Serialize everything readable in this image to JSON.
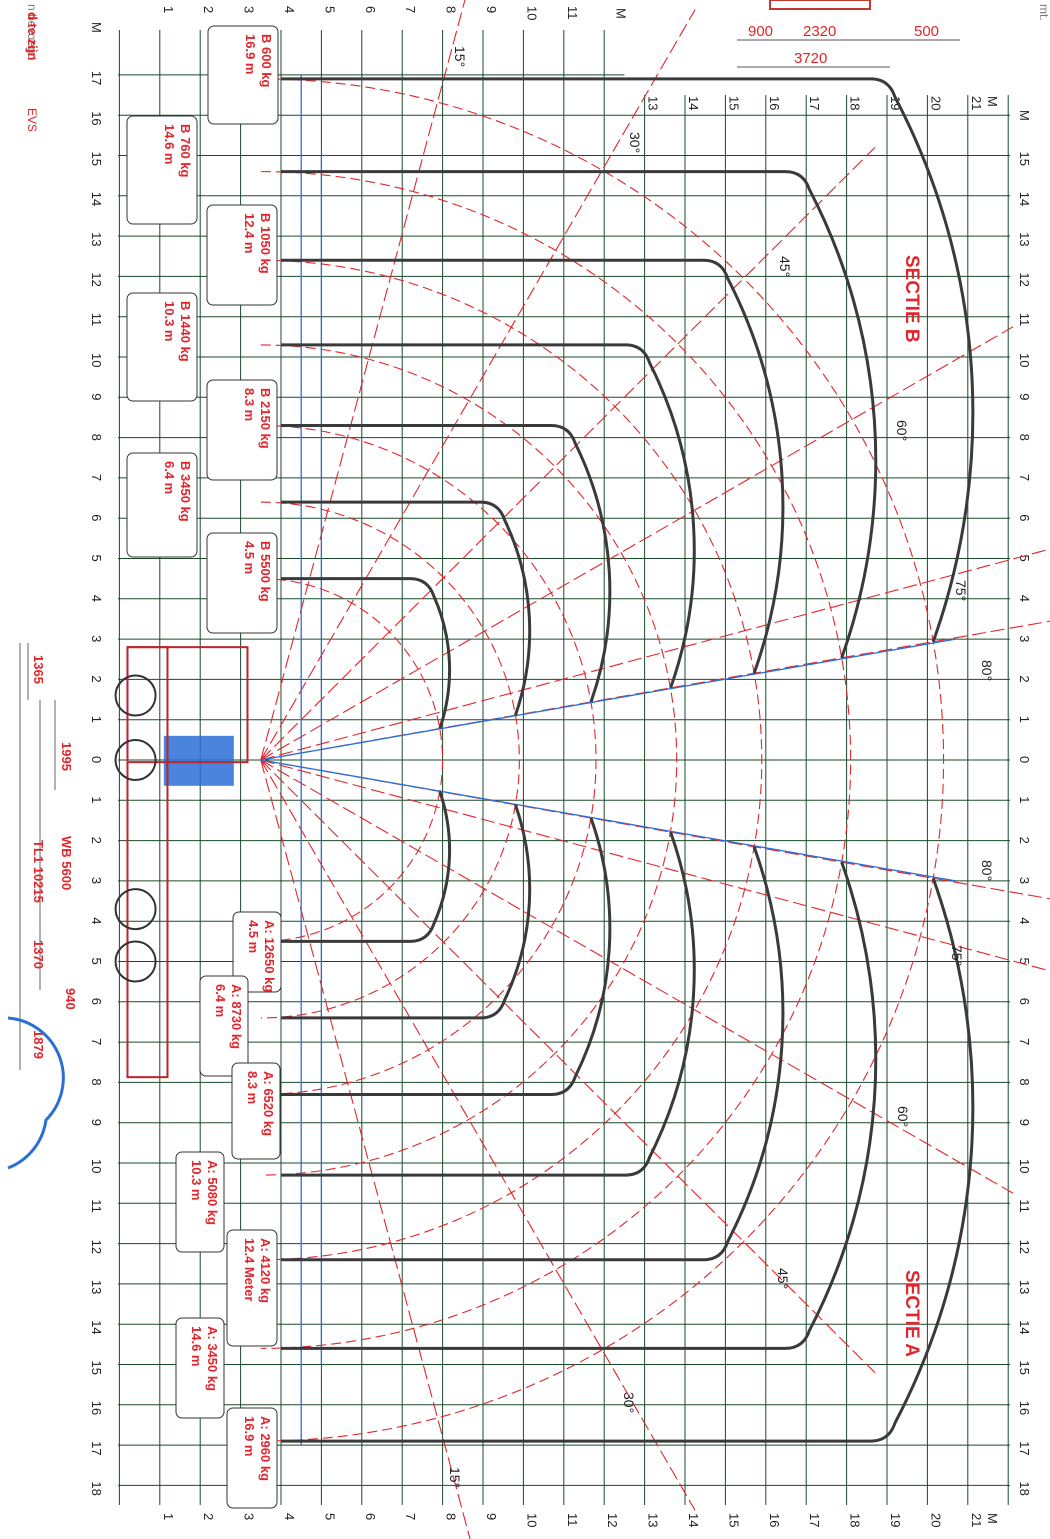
{
  "axis": {
    "unit": "M",
    "vertical_top_ticks": [
      "1",
      "2",
      "3",
      "4",
      "5",
      "6",
      "7",
      "8",
      "9",
      "10",
      "11"
    ],
    "vertical_bottom_ticks": [
      "1",
      "2",
      "3",
      "4",
      "5",
      "6",
      "7",
      "8",
      "9",
      "10",
      "11",
      "12",
      "13",
      "14",
      "15",
      "16",
      "17",
      "18",
      "19",
      "20",
      "21"
    ],
    "horizontal_left_ticks": [
      "17",
      "16",
      "15",
      "14",
      "13",
      "12",
      "11",
      "10",
      "9",
      "8",
      "7",
      "6",
      "5",
      "4",
      "3",
      "2",
      "1",
      "0",
      "1",
      "2",
      "3",
      "4",
      "5",
      "6",
      "7",
      "8",
      "9",
      "10",
      "11",
      "12",
      "13",
      "14",
      "15",
      "16",
      "17",
      "18"
    ],
    "horizontal_right_ticks": [
      "15",
      "14",
      "13",
      "12",
      "11",
      "10",
      "9",
      "8",
      "7",
      "6",
      "5",
      "4",
      "3",
      "2",
      "1",
      "0",
      "1",
      "2",
      "3",
      "4",
      "5",
      "6",
      "7",
      "8",
      "9",
      "10",
      "11",
      "12",
      "13",
      "14",
      "15",
      "16",
      "17",
      "18"
    ],
    "upper_scale_ticks": [
      "13",
      "14",
      "15",
      "16",
      "17",
      "18",
      "19",
      "20",
      "21"
    ]
  },
  "sections": {
    "b_title": "SECTIE B",
    "a_title": "SECTIE A"
  },
  "angles": {
    "b": [
      "30°",
      "45°",
      "60°",
      "75°",
      "80°"
    ],
    "b15": "15°",
    "a": [
      "80°",
      "75°",
      "60°",
      "45°",
      "30°"
    ],
    "a15": "15°"
  },
  "loads_b": [
    {
      "kg": "B 600 kg",
      "reach": "16.9 m"
    },
    {
      "kg": "B 760 kg",
      "reach": "14.6 m"
    },
    {
      "kg": "B 1050 kg",
      "reach": "12.4 m"
    },
    {
      "kg": "B 1440 kg",
      "reach": "10.3 m"
    },
    {
      "kg": "B 2150 kg",
      "reach": "8.3 m"
    },
    {
      "kg": "B 3450 kg",
      "reach": "6.4 m"
    },
    {
      "kg": "B 5500 kg",
      "reach": "4.5 m"
    }
  ],
  "loads_a": [
    {
      "kg": "A: 12650 kg",
      "reach": "4.5 m"
    },
    {
      "kg": "A: 8730 kg",
      "reach": "6.4 m"
    },
    {
      "kg": "A: 6520 kg",
      "reach": "8.3 m"
    },
    {
      "kg": "A: 5080 kg",
      "reach": "10.3 m"
    },
    {
      "kg": "A: 4120 kg",
      "reach": "12.4 Meter"
    },
    {
      "kg": "A: 3450 kg",
      "reach": "14.6 m"
    },
    {
      "kg": "A: 2960 kg",
      "reach": "16.9 m"
    }
  ],
  "dimensions": {
    "d1365": "1365",
    "d1995": "1995",
    "wb": "WB 5600",
    "tl": "TL1 10215",
    "d1370": "1370",
    "d940": "940",
    "d1879": "1879",
    "top_900": "900",
    "top_2320": "2320",
    "top_500": "500",
    "top_3720": "3720"
  },
  "edge": {
    "red_text": "d te zijn",
    "gray_text": "n bevoegd",
    "evs": "EVS",
    "corner": "mt."
  },
  "colors": {
    "grid": "#1a4a2a",
    "curve": "#3a3a3a",
    "red": "#e2262b",
    "boom": "#2a6fd6",
    "truck": "#b8262e"
  }
}
